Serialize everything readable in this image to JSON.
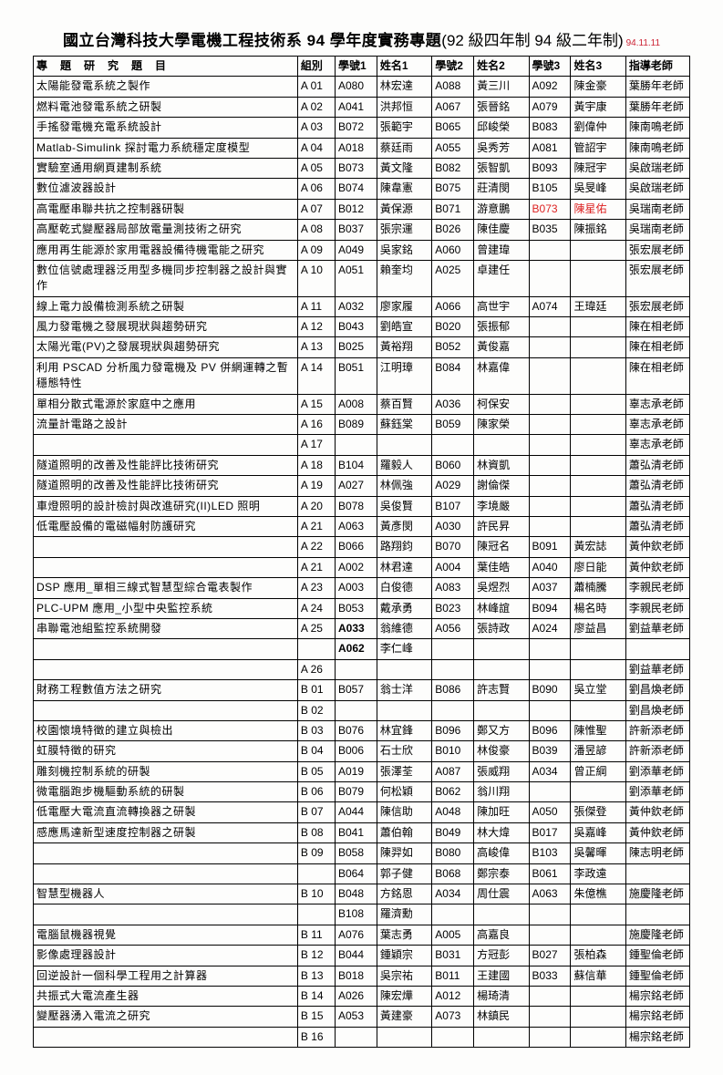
{
  "title_main": "國立台灣科技大學電機工程技術系 94 學年度實務專題",
  "title_sub": "(92 級四年制 94 級二年制)",
  "title_date": "94.11.11",
  "headers": [
    "專題研究題目",
    "組別",
    "學號1",
    "姓名1",
    "學號2",
    "姓名2",
    "學號3",
    "姓名3",
    "指導老師"
  ],
  "rows": [
    {
      "topic": "太陽能發電系統之製作",
      "g": "A 01",
      "id1": "A080",
      "n1": "林宏達",
      "id2": "A088",
      "n2": "黃三川",
      "id3": "A092",
      "n3": "陳金豪",
      "adv": "葉勝年老師"
    },
    {
      "topic": "燃料電池發電系統之研製",
      "g": "A 02",
      "id1": "A041",
      "n1": "洪邦恒",
      "id2": "A067",
      "n2": "張晉銘",
      "id3": "A079",
      "n3": "黃宇康",
      "adv": "葉勝年老師"
    },
    {
      "topic": "手搖發電機充電系統設計",
      "g": "A 03",
      "id1": "B072",
      "n1": "張範宇",
      "id2": "B065",
      "n2": "邱峻榮",
      "id3": "B083",
      "n3": "劉偉仲",
      "adv": "陳南鳴老師"
    },
    {
      "topic": "Matlab-Simulink 探討電力系統穩定度模型",
      "g": "A 04",
      "id1": "A018",
      "n1": "蔡廷雨",
      "id2": "A055",
      "n2": "吳秀芳",
      "id3": "A081",
      "n3": "管詔宇",
      "adv": "陳南鳴老師"
    },
    {
      "topic": "實驗室通用網頁建制系統",
      "g": "A 05",
      "id1": "B073",
      "n1": "黃文隆",
      "id2": "B082",
      "n2": "張智凱",
      "id3": "B093",
      "n3": "陳冠宇",
      "adv": "吳啟瑞老師"
    },
    {
      "topic": "數位濾波器設計",
      "g": "A 06",
      "id1": "B074",
      "n1": "陳韋憲",
      "id2": "B075",
      "n2": "莊清閔",
      "id3": "B105",
      "n3": "吳旻峰",
      "adv": "吳啟瑞老師"
    },
    {
      "topic": "高電壓串聯共抗之控制器研製",
      "g": "A 07",
      "id1": "B012",
      "n1": "黃保源",
      "id2": "B071",
      "n2": "游意鵬",
      "id3": "B073",
      "id3_red": true,
      "n3": "陳星佑",
      "n3_red": true,
      "adv": "吳瑞南老師"
    },
    {
      "topic": "高壓乾式變壓器局部放電量測技術之研究",
      "g": "A 08",
      "id1": "B037",
      "n1": "張宗運",
      "id2": "B026",
      "n2": "陳佳慶",
      "id3": "B035",
      "n3": "陳振銘",
      "adv": "吳瑞南老師"
    },
    {
      "topic": "應用再生能源於家用電器設備待機電能之研究",
      "g": "A 09",
      "id1": "A049",
      "n1": "吳家銘",
      "id2": "A060",
      "n2": "曾建瑋",
      "id3": "",
      "n3": "",
      "adv": "張宏展老師"
    },
    {
      "topic": "數位信號處理器泛用型多機同步控制器之設計與實作",
      "g": "A 10",
      "id1": "A051",
      "n1": "賴奎均",
      "id2": "A025",
      "n2": "卓建任",
      "id3": "",
      "n3": "",
      "adv": "張宏展老師"
    },
    {
      "topic": "線上電力設備檢測系統之研製",
      "g": "A 11",
      "id1": "A032",
      "n1": "廖家履",
      "id2": "A066",
      "n2": "高世宇",
      "id3": "A074",
      "n3": "王瑋廷",
      "adv": "張宏展老師"
    },
    {
      "topic": "風力發電機之發展現狀與趨勢研究",
      "g": "A 12",
      "id1": "B043",
      "n1": "劉皓宣",
      "id2": "B020",
      "n2": "張振郁",
      "id3": "",
      "n3": "",
      "adv": "陳在相老師"
    },
    {
      "topic": "太陽光電(PV)之發展現狀與趨勢研究",
      "g": "A 13",
      "id1": "B025",
      "n1": "黃裕翔",
      "id2": "B052",
      "n2": "黃俊嘉",
      "id3": "",
      "n3": "",
      "adv": "陳在相老師"
    },
    {
      "topic": "利用 PSCAD 分析風力發電機及 PV 併網運轉之暫穩態特性",
      "g": "A 14",
      "id1": "B051",
      "n1": "江明璋",
      "id2": "B084",
      "n2": "林嘉偉",
      "id3": "",
      "n3": "",
      "adv": "陳在相老師"
    },
    {
      "topic": "單相分散式電源於家庭中之應用",
      "g": "A 15",
      "id1": "A008",
      "n1": "蔡百賢",
      "id2": "A036",
      "n2": "柯保安",
      "id3": "",
      "n3": "",
      "adv": "辜志承老師"
    },
    {
      "topic": "流量計電路之設計",
      "g": "A 16",
      "id1": "B089",
      "n1": "蘇鈺棠",
      "id2": "B059",
      "n2": "陳家榮",
      "id3": "",
      "n3": "",
      "adv": "辜志承老師"
    },
    {
      "topic": "",
      "g": "A 17",
      "id1": "",
      "n1": "",
      "id2": "",
      "n2": "",
      "id3": "",
      "n3": "",
      "adv": "辜志承老師"
    },
    {
      "topic": "隧道照明的改善及性能評比技術研究",
      "g": "A 18",
      "id1": "B104",
      "n1": "羅毅人",
      "id2": "B060",
      "n2": "林資凱",
      "id3": "",
      "n3": "",
      "adv": "蕭弘清老師"
    },
    {
      "topic": "隧道照明的改善及性能評比技術研究",
      "g": "A 19",
      "id1": "A027",
      "n1": "林佩強",
      "id2": "A029",
      "n2": "謝倫傑",
      "id3": "",
      "n3": "",
      "adv": "蕭弘清老師"
    },
    {
      "topic": "車燈照明的設計檢討與改進研究(II)LED 照明",
      "g": "A 20",
      "id1": "B078",
      "n1": "吳俊賢",
      "id2": "B107",
      "n2": "李境嚴",
      "id3": "",
      "n3": "",
      "adv": "蕭弘清老師"
    },
    {
      "topic": "低電壓設備的電磁幅射防護研究",
      "g": "A 21",
      "id1": "A063",
      "n1": "黃彥閔",
      "id2": "A030",
      "n2": "許民昇",
      "id3": "",
      "n3": "",
      "adv": "蕭弘清老師"
    },
    {
      "topic": "",
      "g": "A 22",
      "id1": "B066",
      "n1": "路翔鈞",
      "id2": "B070",
      "n2": "陳冠名",
      "id3": "B091",
      "n3": "黃宏誌",
      "adv": "黃仲欽老師"
    },
    {
      "topic": "",
      "g": "A 21",
      "id1": "A002",
      "n1": "林君達",
      "id2": "A004",
      "n2": "葉佳皓",
      "id3": "A040",
      "n3": "廖日能",
      "adv": "黃仲欽老師"
    },
    {
      "topic": "DSP 應用_單相三線式智慧型綜合電表製作",
      "g": "A 23",
      "id1": "A003",
      "n1": "白俊德",
      "id2": "A083",
      "n2": "吳煜烈",
      "id3": "A037",
      "n3": "蕭楠騰",
      "adv": "李親民老師"
    },
    {
      "topic": "PLC-UPM 應用_小型中央監控系統",
      "g": "A 24",
      "id1": "B053",
      "n1": "戴承勇",
      "id2": "B023",
      "n2": "林峰誼",
      "id3": "B094",
      "n3": "楊名時",
      "adv": "李親民老師"
    },
    {
      "topic": "串聯電池組監控系統開發",
      "g": "A 25",
      "id1": "A033",
      "id1_bold": true,
      "n1": "翁維德",
      "id2": "A056",
      "n2": "張詩政",
      "id3": "A024",
      "n3": "廖益昌",
      "adv": "劉益華老師"
    },
    {
      "topic": "",
      "g": "",
      "id1": "A062",
      "id1_bold": true,
      "n1": "李仁峰",
      "id2": "",
      "n2": "",
      "id3": "",
      "n3": "",
      "adv": ""
    },
    {
      "topic": "",
      "g": "A 26",
      "id1": "",
      "n1": "",
      "id2": "",
      "n2": "",
      "id3": "",
      "n3": "",
      "adv": "劉益華老師"
    },
    {
      "topic": "財務工程數值方法之研究",
      "g": "B 01",
      "id1": "B057",
      "n1": "翁士洋",
      "id2": "B086",
      "n2": "許志賢",
      "id3": "B090",
      "n3": "吳立堂",
      "adv": "劉昌煥老師"
    },
    {
      "topic": "",
      "g": "B 02",
      "id1": "",
      "n1": "",
      "id2": "",
      "n2": "",
      "id3": "",
      "n3": "",
      "adv": "劉昌煥老師"
    },
    {
      "topic": "校園懷境特徵的建立與檢出",
      "g": "B 03",
      "id1": "B076",
      "n1": "林宜鋒",
      "id2": "B096",
      "n2": "鄭又方",
      "id3": "B096",
      "n3": "陳惟聖",
      "adv": "許新添老師"
    },
    {
      "topic": "虹膜特徵的研究",
      "g": "B 04",
      "id1": "B006",
      "n1": "石士欣",
      "id2": "B010",
      "n2": "林俊豪",
      "id3": "B039",
      "n3": "潘昱諺",
      "adv": "許新添老師"
    },
    {
      "topic": "雕刻機控制系統的研製",
      "g": "B 05",
      "id1": "A019",
      "n1": "張澤荃",
      "id2": "A087",
      "n2": "張威翔",
      "id3": "A034",
      "n3": "曾正綱",
      "adv": "劉添華老師"
    },
    {
      "topic": "微電腦跑步機驅動系統的研製",
      "g": "B 06",
      "id1": "B079",
      "n1": "何松穎",
      "id2": "B062",
      "n2": "翁川翔",
      "id3": "",
      "n3": "",
      "adv": "劉添華老師"
    },
    {
      "topic": "低電壓大電流直流轉換器之研製",
      "g": "B 07",
      "id1": "A044",
      "n1": "陳信助",
      "id2": "A048",
      "n2": "陳加旺",
      "id3": "A050",
      "n3": "張傑登",
      "adv": "黃仲欽老師"
    },
    {
      "topic": "感應馬達新型速度控制器之研製",
      "g": "B 08",
      "id1": "B041",
      "n1": "蕭伯翰",
      "id2": "B049",
      "n2": "林大煒",
      "id3": "B017",
      "n3": "吳嘉峰",
      "adv": "黃仲欽老師"
    },
    {
      "topic": "",
      "g": "B 09",
      "id1": "B058",
      "n1": "陳羿如",
      "id2": "B080",
      "n2": "高峻偉",
      "id3": "B103",
      "n3": "吳馨暉",
      "adv": "陳志明老師"
    },
    {
      "topic": "",
      "g": "",
      "id1": "B064",
      "n1": "郭子健",
      "id2": "B068",
      "n2": "鄭宗泰",
      "id3": "B061",
      "n3": "李政遠",
      "adv": ""
    },
    {
      "topic": "智慧型機器人",
      "g": "B 10",
      "id1": "B048",
      "n1": "方銘恩",
      "id2": "A034",
      "n2": "周仕震",
      "id3": "A063",
      "n3": "朱億樵",
      "adv": "施慶隆老師"
    },
    {
      "topic": "",
      "g": "",
      "id1": "B108",
      "n1": "羅濟勳",
      "id2": "",
      "n2": "",
      "id3": "",
      "n3": "",
      "adv": ""
    },
    {
      "topic": "電腦鼠機器視覺",
      "g": "B 11",
      "id1": "A076",
      "n1": "葉志勇",
      "id2": "A005",
      "n2": "高嘉良",
      "id3": "",
      "n3": "",
      "adv": "施慶隆老師"
    },
    {
      "topic": "影像處理器設計",
      "g": "B 12",
      "id1": "B044",
      "n1": "鍾穎宗",
      "id2": "B031",
      "n2": "方冠彭",
      "id3": "B027",
      "n3": "張柏森",
      "adv": "鍾聖倫老師"
    },
    {
      "topic": "回逆設計一個科學工程用之計算器",
      "g": "B 13",
      "id1": "B018",
      "n1": "吳宗祐",
      "id2": "B011",
      "n2": "王建國",
      "id3": "B033",
      "n3": "蘇信華",
      "adv": "鍾聖倫老師"
    },
    {
      "topic": "共振式大電流產生器",
      "g": "B 14",
      "id1": "A026",
      "n1": "陳宏燁",
      "id2": "A012",
      "n2": "楊琦清",
      "id3": "",
      "n3": "",
      "adv": "楊宗銘老師"
    },
    {
      "topic": "變壓器湧入電流之研究",
      "g": "B 15",
      "id1": "A053",
      "n1": "黃建豪",
      "id2": "A073",
      "n2": "林鎮民",
      "id3": "",
      "n3": "",
      "adv": "楊宗銘老師"
    },
    {
      "topic": "",
      "g": "B 16",
      "id1": "",
      "n1": "",
      "id2": "",
      "n2": "",
      "id3": "",
      "n3": "",
      "adv": "楊宗銘老師"
    }
  ]
}
